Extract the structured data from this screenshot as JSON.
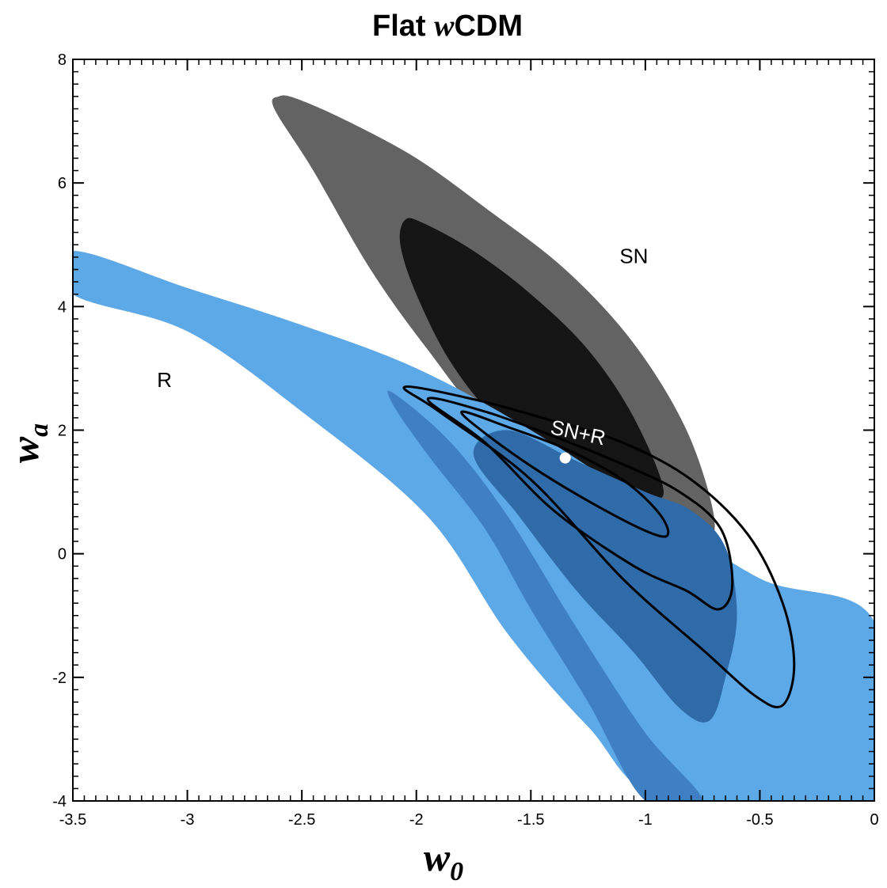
{
  "chart_data": {
    "type": "contour",
    "title_prefix": "Flat ",
    "title_italic": "w",
    "title_suffix": "CDM",
    "xlabel": {
      "symbol": "w",
      "subscript": "0"
    },
    "ylabel": {
      "symbol": "w",
      "subscript": "a"
    },
    "xlim": [
      -3.5,
      0
    ],
    "ylim": [
      -4,
      8
    ],
    "xticks": [
      -3.5,
      -3,
      -2.5,
      -2,
      -1.5,
      -1,
      -0.5,
      0
    ],
    "xtick_labels": [
      "-3.5",
      "-3",
      "-2.5",
      "-2",
      "-1.5",
      "-1",
      "-0.5",
      "0"
    ],
    "yticks": [
      -4,
      -2,
      0,
      2,
      4,
      6,
      8
    ],
    "ytick_labels": [
      "-4",
      "-2",
      "0",
      "2",
      "4",
      "6",
      "8"
    ],
    "colors": {
      "sn_outer": "#636363",
      "sn_inner": "#151515",
      "r_outer": "#5da8e6",
      "r_inner": "#3f7fc3",
      "r_overlap": "#2f6ba8",
      "combined_contour": "#000000",
      "best_fit": "#ffffff"
    },
    "regions": {
      "sn_outer": [
        [
          -2.6,
          7.4
        ],
        [
          -2.52,
          7.36
        ],
        [
          -2.3,
          7.0
        ],
        [
          -2.0,
          6.4
        ],
        [
          -1.7,
          5.6
        ],
        [
          -1.35,
          4.6
        ],
        [
          -1.05,
          3.4
        ],
        [
          -0.82,
          2.0
        ],
        [
          -0.7,
          0.6
        ],
        [
          -0.75,
          0.2
        ],
        [
          -0.95,
          0.55
        ],
        [
          -1.3,
          1.3
        ],
        [
          -1.7,
          2.2
        ],
        [
          -1.95,
          3.3
        ],
        [
          -2.2,
          4.6
        ],
        [
          -2.45,
          6.2
        ],
        [
          -2.62,
          7.2
        ]
      ],
      "sn_inner": [
        [
          -2.05,
          5.4
        ],
        [
          -1.97,
          5.35
        ],
        [
          -1.75,
          4.9
        ],
        [
          -1.5,
          4.2
        ],
        [
          -1.25,
          3.3
        ],
        [
          -1.05,
          2.2
        ],
        [
          -0.92,
          1.0
        ],
        [
          -1.05,
          1.0
        ],
        [
          -1.35,
          1.5
        ],
        [
          -1.65,
          2.2
        ],
        [
          -1.85,
          3.1
        ],
        [
          -2.0,
          4.2
        ],
        [
          -2.07,
          5.0
        ]
      ],
      "r_outer": [
        [
          -3.5,
          4.9
        ],
        [
          -3.0,
          4.3
        ],
        [
          -2.5,
          3.7
        ],
        [
          -2.0,
          3.0
        ],
        [
          -1.5,
          2.0
        ],
        [
          -1.0,
          0.8
        ],
        [
          -0.5,
          -0.4
        ],
        [
          0.0,
          -1.1
        ],
        [
          0.0,
          -4.0
        ],
        [
          -0.9,
          -4.0
        ],
        [
          -1.25,
          -2.8
        ],
        [
          -1.6,
          -1.3
        ],
        [
          -1.95,
          0.6
        ],
        [
          -2.5,
          2.3
        ],
        [
          -3.0,
          3.6
        ],
        [
          -3.5,
          4.2
        ]
      ],
      "r_inner": [
        [
          -2.1,
          2.4
        ],
        [
          -1.95,
          1.6
        ],
        [
          -1.7,
          0.4
        ],
        [
          -1.5,
          -0.9
        ],
        [
          -1.25,
          -2.4
        ],
        [
          -1.0,
          -4.0
        ],
        [
          -0.75,
          -4.0
        ],
        [
          -1.0,
          -2.9
        ],
        [
          -1.3,
          -1.2
        ],
        [
          -1.6,
          0.6
        ],
        [
          -1.85,
          1.8
        ],
        [
          -2.1,
          2.6
        ]
      ],
      "r_overlap": [
        [
          -1.6,
          2.0
        ],
        [
          -1.3,
          1.5
        ],
        [
          -1.0,
          1.0
        ],
        [
          -0.8,
          0.7
        ],
        [
          -0.65,
          0.1
        ],
        [
          -0.6,
          -1.0
        ],
        [
          -0.65,
          -2.0
        ],
        [
          -0.72,
          -2.7
        ],
        [
          -0.85,
          -2.5
        ],
        [
          -1.05,
          -1.6
        ],
        [
          -1.3,
          -0.6
        ],
        [
          -1.55,
          0.6
        ],
        [
          -1.75,
          1.6
        ]
      ],
      "sn_r_1sigma": [
        [
          -1.8,
          2.3
        ],
        [
          -1.6,
          2.05
        ],
        [
          -1.35,
          1.7
        ],
        [
          -1.1,
          1.2
        ],
        [
          -0.95,
          0.7
        ],
        [
          -0.9,
          0.35
        ],
        [
          -0.95,
          0.3
        ],
        [
          -1.15,
          0.65
        ],
        [
          -1.45,
          1.3
        ],
        [
          -1.7,
          1.95
        ]
      ],
      "sn_r_2sigma": [
        [
          -1.95,
          2.5
        ],
        [
          -1.7,
          2.3
        ],
        [
          -1.4,
          1.9
        ],
        [
          -1.1,
          1.45
        ],
        [
          -0.85,
          1.0
        ],
        [
          -0.67,
          0.4
        ],
        [
          -0.62,
          -0.5
        ],
        [
          -0.68,
          -0.9
        ],
        [
          -0.82,
          -0.6
        ],
        [
          -1.05,
          -0.2
        ],
        [
          -1.4,
          0.7
        ],
        [
          -1.7,
          1.8
        ]
      ],
      "sn_r_3sigma": [
        [
          -2.05,
          2.7
        ],
        [
          -1.75,
          2.5
        ],
        [
          -1.45,
          2.2
        ],
        [
          -1.1,
          1.8
        ],
        [
          -0.8,
          1.2
        ],
        [
          -0.55,
          0.3
        ],
        [
          -0.4,
          -0.8
        ],
        [
          -0.35,
          -1.8
        ],
        [
          -0.4,
          -2.45
        ],
        [
          -0.52,
          -2.3
        ],
        [
          -0.75,
          -1.55
        ],
        [
          -1.1,
          -0.4
        ],
        [
          -1.5,
          1.2
        ],
        [
          -1.9,
          2.3
        ]
      ]
    },
    "best_fit": {
      "x": -1.35,
      "y": 1.55
    },
    "annotations": [
      {
        "text": "SN",
        "x": -1.05,
        "y": 4.7,
        "color": "black"
      },
      {
        "text": "R",
        "x": -3.1,
        "y": 2.7,
        "color": "black"
      },
      {
        "text": "SN+R",
        "x": -1.3,
        "y": 1.85,
        "color": "white",
        "rotate": 12
      }
    ]
  }
}
